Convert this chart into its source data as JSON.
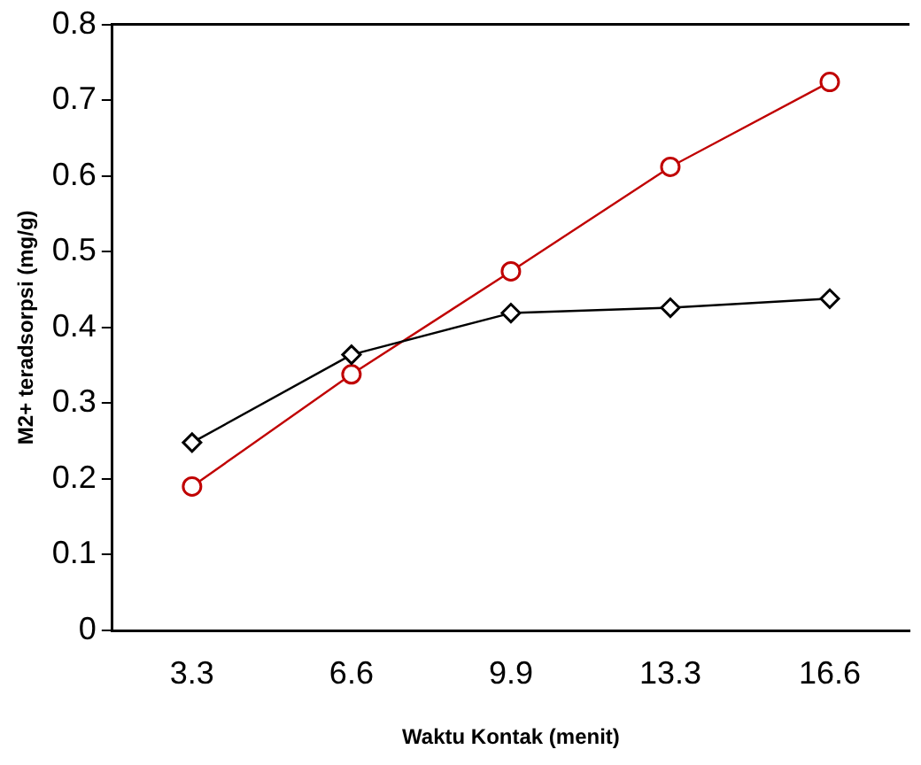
{
  "chart_data": {
    "type": "line",
    "xlabel": "Waktu Kontak (menit)",
    "ylabel": "M2+ teradsorpsi (mg/g)",
    "categories": [
      "3.3",
      "6.6",
      "9.9",
      "13.3",
      "16.6"
    ],
    "series": [
      {
        "color": "#000000",
        "marker": "diamond",
        "values": [
          0.248,
          0.364,
          0.419,
          0.426,
          0.438
        ]
      },
      {
        "color": "#c00000",
        "marker": "circle",
        "values": [
          0.19,
          0.338,
          0.474,
          0.612,
          0.724
        ]
      }
    ],
    "ylim": [
      0,
      0.8
    ],
    "yticks": [
      0,
      0.1,
      0.2,
      0.3,
      0.4,
      0.5,
      0.6,
      0.7,
      0.8
    ],
    "grid": false,
    "legend": false,
    "line_style": "solid"
  }
}
